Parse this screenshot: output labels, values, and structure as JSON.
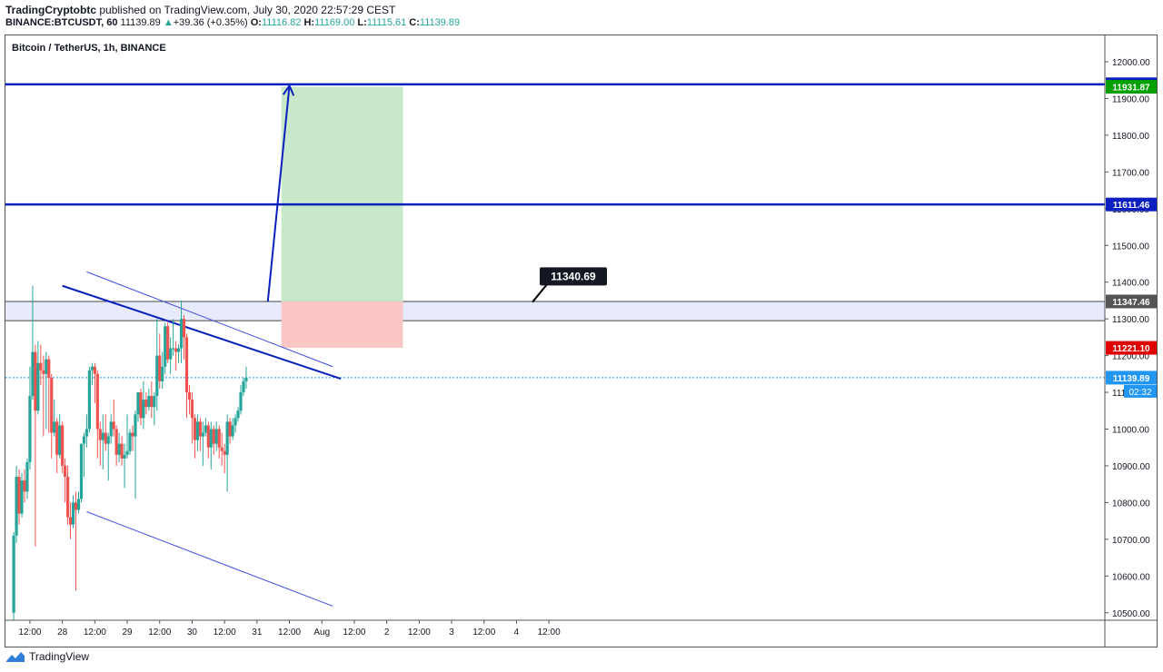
{
  "header": {
    "publisher": "TradingCryptobtc",
    "published_text": "published on TradingView.com, July 30, 2020 22:57:29 CEST",
    "symbol": "BINANCE:BTCUSDT, 60",
    "last": "11139.89",
    "change_arrow": "▲",
    "change": "+39.36 (+0.35%)",
    "o_label": "O:",
    "o_value": "11116.82",
    "h_label": "H:",
    "h_value": "11169.00",
    "l_label": "L:",
    "l_value": "11115.61",
    "c_label": "C:",
    "c_value": "11139.89"
  },
  "footer": {
    "brand": "TradingView",
    "logo_icon": "tradingview-logo-icon"
  },
  "colors": {
    "up": "#26a69a",
    "down": "#ef5350",
    "level": "#0a1fbf",
    "channel": "#3d4de0",
    "profit_zone": "#c8e9c9",
    "loss_zone": "#fbc6c6",
    "supply_zone": "#e8ebfb",
    "last_price": "#2196f3",
    "target_badge": "#00a000",
    "stop_badge": "#e00000",
    "level_badge": "#555555"
  },
  "chart_data": {
    "type": "candlestick",
    "title": "Bitcoin / TetherUS, 1h, BINANCE",
    "xlabel": "",
    "ylabel": "",
    "ylim": [
      10480,
      12080
    ],
    "x_ticks": [
      "12:00",
      "28",
      "12:00",
      "29",
      "12:00",
      "30",
      "12:00",
      "31",
      "12:00",
      "Aug",
      "12:00",
      "2",
      "12:00",
      "3",
      "12:00",
      "4",
      "12:00"
    ],
    "y_ticks": [
      "12000.00",
      "11900.00",
      "11800.00",
      "11700.00",
      "11600.00",
      "11500.00",
      "11400.00",
      "11300.00",
      "11200.00",
      "11100.00",
      "11000.00",
      "10900.00",
      "10800.00",
      "10700.00",
      "10600.00",
      "10500.00"
    ],
    "grid": false,
    "start_time": "Jul 27 06:00",
    "candles": [
      {
        "o": 10500,
        "h": 10720,
        "l": 10480,
        "c": 10710
      },
      {
        "o": 10710,
        "h": 10900,
        "l": 10690,
        "c": 10870
      },
      {
        "o": 10870,
        "h": 10890,
        "l": 10740,
        "c": 10770
      },
      {
        "o": 10770,
        "h": 10880,
        "l": 10760,
        "c": 10860
      },
      {
        "o": 10860,
        "h": 10890,
        "l": 10800,
        "c": 10830
      },
      {
        "o": 10830,
        "h": 10920,
        "l": 10810,
        "c": 10910
      },
      {
        "o": 10910,
        "h": 11170,
        "l": 10890,
        "c": 11090
      },
      {
        "o": 11090,
        "h": 11390,
        "l": 11080,
        "c": 11210
      },
      {
        "o": 11210,
        "h": 11230,
        "l": 10680,
        "c": 11050
      },
      {
        "o": 11050,
        "h": 11240,
        "l": 11040,
        "c": 11180
      },
      {
        "o": 11180,
        "h": 11230,
        "l": 11120,
        "c": 11160
      },
      {
        "o": 11160,
        "h": 11200,
        "l": 10980,
        "c": 11150
      },
      {
        "o": 11150,
        "h": 11210,
        "l": 11000,
        "c": 11190
      },
      {
        "o": 11190,
        "h": 11200,
        "l": 10990,
        "c": 11140
      },
      {
        "o": 11140,
        "h": 11150,
        "l": 10920,
        "c": 10990
      },
      {
        "o": 10990,
        "h": 11080,
        "l": 10980,
        "c": 11020
      },
      {
        "o": 11020,
        "h": 11030,
        "l": 10880,
        "c": 10930
      },
      {
        "o": 10930,
        "h": 11040,
        "l": 10920,
        "c": 11010
      },
      {
        "o": 11010,
        "h": 11020,
        "l": 10880,
        "c": 10900
      },
      {
        "o": 10900,
        "h": 10920,
        "l": 10800,
        "c": 10870
      },
      {
        "o": 10870,
        "h": 10900,
        "l": 10740,
        "c": 10760
      },
      {
        "o": 10760,
        "h": 10800,
        "l": 10700,
        "c": 10740
      },
      {
        "o": 10740,
        "h": 10820,
        "l": 10730,
        "c": 10800
      },
      {
        "o": 10800,
        "h": 10830,
        "l": 10560,
        "c": 10780
      },
      {
        "o": 10780,
        "h": 10830,
        "l": 10770,
        "c": 10810
      },
      {
        "o": 10810,
        "h": 10960,
        "l": 10800,
        "c": 10960
      },
      {
        "o": 10960,
        "h": 10990,
        "l": 10870,
        "c": 10980
      },
      {
        "o": 10980,
        "h": 11040,
        "l": 10950,
        "c": 11000
      },
      {
        "o": 11000,
        "h": 11170,
        "l": 10990,
        "c": 11160
      },
      {
        "o": 11160,
        "h": 11180,
        "l": 11120,
        "c": 11170
      },
      {
        "o": 11170,
        "h": 11180,
        "l": 11070,
        "c": 11150
      },
      {
        "o": 11150,
        "h": 11160,
        "l": 10920,
        "c": 11000
      },
      {
        "o": 11000,
        "h": 11020,
        "l": 10900,
        "c": 10970
      },
      {
        "o": 10970,
        "h": 11040,
        "l": 10890,
        "c": 10990
      },
      {
        "o": 10990,
        "h": 11040,
        "l": 10940,
        "c": 10960
      },
      {
        "o": 10960,
        "h": 10990,
        "l": 10860,
        "c": 10980
      },
      {
        "o": 10980,
        "h": 11040,
        "l": 10960,
        "c": 11020
      },
      {
        "o": 11020,
        "h": 11080,
        "l": 10980,
        "c": 11000
      },
      {
        "o": 11000,
        "h": 11010,
        "l": 10900,
        "c": 10930
      },
      {
        "o": 10930,
        "h": 10990,
        "l": 10910,
        "c": 10960
      },
      {
        "o": 10960,
        "h": 10980,
        "l": 10900,
        "c": 10920
      },
      {
        "o": 10920,
        "h": 10960,
        "l": 10840,
        "c": 10930
      },
      {
        "o": 10930,
        "h": 11040,
        "l": 10920,
        "c": 10940
      },
      {
        "o": 10940,
        "h": 11000,
        "l": 10930,
        "c": 10990
      },
      {
        "o": 10990,
        "h": 11010,
        "l": 10940,
        "c": 10980
      },
      {
        "o": 10980,
        "h": 11050,
        "l": 10810,
        "c": 11040
      },
      {
        "o": 11040,
        "h": 11100,
        "l": 11020,
        "c": 11100
      },
      {
        "o": 11100,
        "h": 11110,
        "l": 11010,
        "c": 11030
      },
      {
        "o": 11030,
        "h": 11130,
        "l": 11000,
        "c": 11080
      },
      {
        "o": 11080,
        "h": 11100,
        "l": 11040,
        "c": 11060
      },
      {
        "o": 11060,
        "h": 11110,
        "l": 11050,
        "c": 11090
      },
      {
        "o": 11090,
        "h": 11130,
        "l": 11030,
        "c": 11060
      },
      {
        "o": 11060,
        "h": 11100,
        "l": 11010,
        "c": 11090
      },
      {
        "o": 11090,
        "h": 11300,
        "l": 11050,
        "c": 11200
      },
      {
        "o": 11200,
        "h": 11260,
        "l": 11110,
        "c": 11130
      },
      {
        "o": 11130,
        "h": 11210,
        "l": 11110,
        "c": 11170
      },
      {
        "o": 11170,
        "h": 11290,
        "l": 11150,
        "c": 11280
      },
      {
        "o": 11280,
        "h": 11290,
        "l": 11180,
        "c": 11190
      },
      {
        "o": 11190,
        "h": 11250,
        "l": 11150,
        "c": 11220
      },
      {
        "o": 11220,
        "h": 11300,
        "l": 11200,
        "c": 11220
      },
      {
        "o": 11220,
        "h": 11240,
        "l": 11160,
        "c": 11210
      },
      {
        "o": 11210,
        "h": 11230,
        "l": 11180,
        "c": 11220
      },
      {
        "o": 11220,
        "h": 11350,
        "l": 11180,
        "c": 11300
      },
      {
        "o": 11300,
        "h": 11310,
        "l": 11190,
        "c": 11250
      },
      {
        "o": 11250,
        "h": 11260,
        "l": 11030,
        "c": 11100
      },
      {
        "o": 11100,
        "h": 11120,
        "l": 11040,
        "c": 11080
      },
      {
        "o": 11080,
        "h": 11100,
        "l": 10960,
        "c": 11030
      },
      {
        "o": 11030,
        "h": 11040,
        "l": 10920,
        "c": 10970
      },
      {
        "o": 10970,
        "h": 11040,
        "l": 10940,
        "c": 11020
      },
      {
        "o": 11020,
        "h": 11030,
        "l": 10940,
        "c": 10980
      },
      {
        "o": 10980,
        "h": 11020,
        "l": 10900,
        "c": 10990
      },
      {
        "o": 10990,
        "h": 11030,
        "l": 10980,
        "c": 11010
      },
      {
        "o": 11010,
        "h": 11020,
        "l": 10920,
        "c": 10950
      },
      {
        "o": 10950,
        "h": 11020,
        "l": 10890,
        "c": 11000
      },
      {
        "o": 11000,
        "h": 11010,
        "l": 10930,
        "c": 10960
      },
      {
        "o": 10960,
        "h": 11020,
        "l": 10940,
        "c": 11000
      },
      {
        "o": 11000,
        "h": 11010,
        "l": 10920,
        "c": 10950
      },
      {
        "o": 10950,
        "h": 10990,
        "l": 10900,
        "c": 10940
      },
      {
        "o": 10940,
        "h": 10960,
        "l": 10880,
        "c": 10930
      },
      {
        "o": 10930,
        "h": 11040,
        "l": 10830,
        "c": 11020
      },
      {
        "o": 11020,
        "h": 11030,
        "l": 10960,
        "c": 10980
      },
      {
        "o": 10980,
        "h": 11030,
        "l": 10970,
        "c": 11010
      },
      {
        "o": 11010,
        "h": 11040,
        "l": 10990,
        "c": 11030
      },
      {
        "o": 11030,
        "h": 11060,
        "l": 11020,
        "c": 11050
      },
      {
        "o": 11050,
        "h": 11120,
        "l": 11040,
        "c": 11100
      },
      {
        "o": 11100,
        "h": 11140,
        "l": 11090,
        "c": 11130
      },
      {
        "o": 11130,
        "h": 11170,
        "l": 11110,
        "c": 11140
      }
    ],
    "horizontal_levels": [
      {
        "price": 11938.64,
        "label": "11938.64",
        "color": "#0a1fbf"
      },
      {
        "price": 11611.46,
        "label": "11611.46",
        "color": "#0a1fbf"
      }
    ],
    "price_badges": [
      {
        "label": "11931.87",
        "price": 11931.87,
        "color": "#00a000"
      },
      {
        "label": "11347.46",
        "price": 11347.46,
        "color": "#555555"
      },
      {
        "label": "11221.10",
        "price": 11221.1,
        "color": "#e00000"
      },
      {
        "label": "11139.89",
        "price": 11139.89,
        "color": "#2196f3"
      }
    ],
    "countdown": "02:32",
    "callout": {
      "text": "11340.69",
      "price": 11340.69
    },
    "supply_zone": {
      "from": 11295,
      "to": 11347.46
    },
    "position": {
      "entry": 11347.46,
      "target": 11931.87,
      "stop": 11221.1,
      "start": "Jul 31 09:00",
      "end": "Aug 2 06:00"
    },
    "trendlines": [
      {
        "from_time": "Jul 28 00:00",
        "from": 11390,
        "to_time": "Aug 1 07:00",
        "to": 11137,
        "weight": 2
      },
      {
        "from_time": "Jul 28 09:00",
        "from": 11428,
        "to_time": "Aug 1 04:00",
        "to": 11170,
        "weight": 1
      },
      {
        "from_time": "Jul 28 09:00",
        "from": 10775,
        "to_time": "Aug 1 04:00",
        "to": 10518,
        "weight": 1
      }
    ],
    "projection_arrow": {
      "from_time": "Jul 31 04:00",
      "from": 11347,
      "to_time": "Jul 31 12:00",
      "to": 11935
    }
  }
}
